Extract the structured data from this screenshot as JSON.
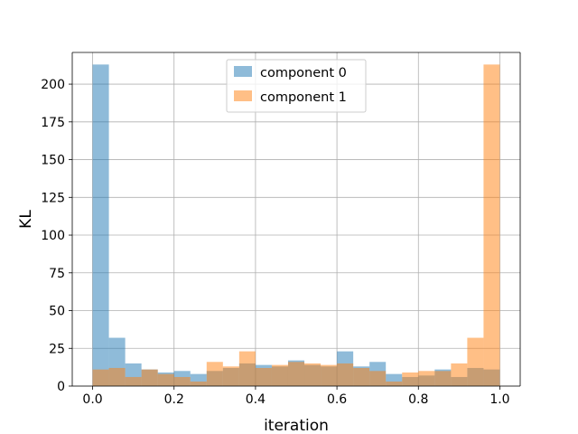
{
  "chart_data": {
    "type": "bar",
    "subtype": "overlapping-histogram",
    "title": "",
    "xlabel": "iteration",
    "ylabel": "KL",
    "xlim": [
      -0.05,
      1.05
    ],
    "ylim": [
      0,
      221
    ],
    "bin_width": 0.04,
    "bin_edges": [
      0.0,
      0.04,
      0.08,
      0.12,
      0.16,
      0.2,
      0.24,
      0.28,
      0.32,
      0.36,
      0.4,
      0.44,
      0.48,
      0.52,
      0.56,
      0.6,
      0.64,
      0.68,
      0.72,
      0.76,
      0.8,
      0.84,
      0.88,
      0.92,
      0.96,
      1.0
    ],
    "x_ticks": [
      0.0,
      0.2,
      0.4,
      0.6,
      0.8,
      1.0
    ],
    "x_tick_labels": [
      "0.0",
      "0.2",
      "0.4",
      "0.6",
      "0.8",
      "1.0"
    ],
    "y_ticks": [
      0,
      25,
      50,
      75,
      100,
      125,
      150,
      175,
      200
    ],
    "y_tick_labels": [
      "0",
      "25",
      "50",
      "75",
      "100",
      "125",
      "150",
      "175",
      "200"
    ],
    "grid": true,
    "legend_position": "top-center",
    "series": [
      {
        "name": "component 0",
        "color": "#1f77b4",
        "alpha": 0.5,
        "values": [
          213,
          32,
          15,
          11,
          9,
          10,
          8,
          10,
          12,
          15,
          14,
          13,
          17,
          14,
          13,
          23,
          13,
          16,
          8,
          6,
          7,
          11,
          6,
          12,
          11
        ]
      },
      {
        "name": "component 1",
        "color": "#ff7f0e",
        "alpha": 0.5,
        "values": [
          11,
          12,
          6,
          11,
          8,
          6,
          3,
          16,
          13,
          23,
          12,
          14,
          16,
          15,
          14,
          15,
          12,
          10,
          3,
          9,
          10,
          10,
          15,
          32,
          213
        ]
      }
    ]
  }
}
